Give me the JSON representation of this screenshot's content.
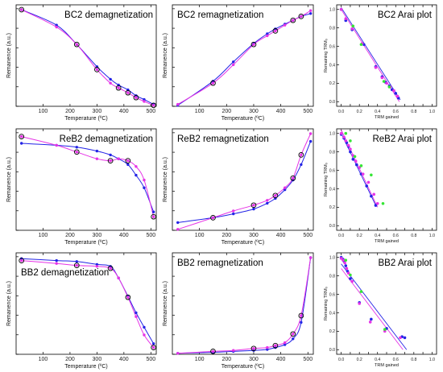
{
  "colors": {
    "blue": "#2323e6",
    "magenta": "#e633e6",
    "green": "#36e636",
    "frame": "#000000"
  },
  "chart_data": [
    {
      "type": "scatter",
      "panel": "demag",
      "row": 0,
      "col": 0,
      "title": "BC2 demagnetization",
      "xlabel": "Temperature (ºC)",
      "ylabel": "Remanence (a.u.)",
      "xlim": [
        0,
        520
      ],
      "ylim": [
        0,
        1.05
      ],
      "xticks": [
        100,
        200,
        300,
        400,
        500
      ],
      "yticks": [],
      "series": [
        {
          "color": "blue",
          "x": [
            20,
            150,
            225,
            300,
            350,
            380,
            415,
            445,
            475,
            510
          ],
          "y": [
            1.0,
            0.84,
            0.64,
            0.41,
            0.28,
            0.22,
            0.17,
            0.11,
            0.07,
            0.02
          ]
        },
        {
          "color": "magenta",
          "x": [
            20,
            150,
            225,
            300,
            350,
            380,
            415,
            445,
            475,
            510
          ],
          "y": [
            1.0,
            0.82,
            0.64,
            0.38,
            0.24,
            0.19,
            0.14,
            0.09,
            0.05,
            0.01
          ]
        }
      ],
      "circled": [
        0,
        2,
        3,
        5,
        6,
        7,
        9
      ]
    },
    {
      "type": "scatter",
      "panel": "remag",
      "row": 0,
      "col": 1,
      "title": "BC2 remagnetization",
      "xlabel": "Temperature (ºC)",
      "ylabel": "Remanence (a.u.)",
      "xlim": [
        0,
        520
      ],
      "ylim": [
        0,
        1.05
      ],
      "xticks": [
        100,
        200,
        300,
        400,
        500
      ],
      "yticks": [],
      "series": [
        {
          "color": "blue",
          "x": [
            20,
            150,
            225,
            300,
            350,
            380,
            415,
            445,
            475,
            510
          ],
          "y": [
            0.01,
            0.26,
            0.46,
            0.65,
            0.75,
            0.8,
            0.85,
            0.89,
            0.93,
            0.96
          ]
        },
        {
          "color": "magenta",
          "x": [
            20,
            150,
            225,
            300,
            350,
            380,
            415,
            445,
            475,
            510
          ],
          "y": [
            0.02,
            0.24,
            0.43,
            0.64,
            0.73,
            0.78,
            0.84,
            0.89,
            0.93,
            0.99
          ]
        }
      ],
      "circled": [
        1,
        3,
        5,
        7,
        8
      ]
    },
    {
      "type": "scatter",
      "panel": "arai",
      "row": 0,
      "col": 2,
      "title": "BC2 Arai plot",
      "xlabel": "TRM gained",
      "ylabel": "Remaining TRM₀",
      "xlim": [
        -0.05,
        1.05
      ],
      "ylim": [
        -0.05,
        1.05
      ],
      "xticks": [
        0.0,
        0.1,
        0.2,
        0.3,
        0.4,
        0.5,
        0.6,
        0.7,
        0.8,
        0.9,
        1.0
      ],
      "yticks": [
        0.0,
        0.2,
        0.4,
        0.6,
        0.8,
        1.0
      ],
      "xticklabels": [
        "0.0",
        "",
        "0.2",
        "",
        "0.4",
        "",
        "0.6",
        "",
        "0.8",
        "",
        "1.0"
      ],
      "yticklabels": [
        "0.0",
        "0.2",
        "0.4",
        "0.6",
        "0.8",
        "1.0"
      ],
      "fits": [
        {
          "color": "blue",
          "x": [
            0.0,
            0.65
          ],
          "y": [
            1.02,
            0.02
          ]
        },
        {
          "color": "magenta",
          "x": [
            0.0,
            0.64
          ],
          "y": [
            1.0,
            0.0
          ]
        }
      ],
      "series": [
        {
          "color": "blue",
          "x": [
            0.0,
            0.05,
            0.12,
            0.25,
            0.38,
            0.45,
            0.49,
            0.53,
            0.56,
            0.6,
            0.63
          ],
          "y": [
            1.0,
            0.88,
            0.78,
            0.62,
            0.38,
            0.27,
            0.21,
            0.17,
            0.13,
            0.09,
            0.04
          ]
        },
        {
          "color": "magenta",
          "x": [
            0.0,
            0.05,
            0.12,
            0.23,
            0.38,
            0.45,
            0.5,
            0.54,
            0.58,
            0.62
          ],
          "y": [
            1.0,
            0.9,
            0.79,
            0.63,
            0.37,
            0.26,
            0.2,
            0.16,
            0.12,
            0.06
          ]
        },
        {
          "color": "green",
          "x": [
            0.13,
            0.22,
            0.47,
            0.53
          ],
          "y": [
            0.82,
            0.62,
            0.22,
            0.16
          ]
        }
      ]
    },
    {
      "type": "scatter",
      "panel": "demag",
      "row": 1,
      "col": 0,
      "title": "ReB2 demagnetization",
      "xlabel": "Temperature (ºC)",
      "ylabel": "Remanence (a.u.)",
      "xlim": [
        0,
        520
      ],
      "ylim": [
        0,
        1.05
      ],
      "xticks": [
        100,
        200,
        300,
        400,
        500
      ],
      "yticks": [],
      "series": [
        {
          "color": "blue",
          "x": [
            20,
            150,
            225,
            300,
            350,
            380,
            415,
            445,
            475,
            510
          ],
          "y": [
            0.9,
            0.88,
            0.86,
            0.82,
            0.78,
            0.74,
            0.68,
            0.57,
            0.44,
            0.19
          ]
        },
        {
          "color": "magenta",
          "x": [
            20,
            150,
            225,
            300,
            350,
            380,
            415,
            445,
            475,
            510
          ],
          "y": [
            0.97,
            0.88,
            0.81,
            0.74,
            0.72,
            0.74,
            0.72,
            0.66,
            0.52,
            0.14
          ]
        }
      ],
      "circled": [
        0,
        2,
        4,
        6,
        9
      ]
    },
    {
      "type": "scatter",
      "panel": "remag",
      "row": 1,
      "col": 1,
      "title": "ReB2 remagnetization",
      "xlabel": "Temperature (ºC)",
      "ylabel": "Remanence (a.u.)",
      "xlim": [
        0,
        520
      ],
      "ylim": [
        0,
        1.05
      ],
      "xticks": [
        100,
        200,
        300,
        400,
        500
      ],
      "yticks": [],
      "series": [
        {
          "color": "blue",
          "x": [
            20,
            150,
            225,
            300,
            350,
            380,
            415,
            445,
            475,
            510
          ],
          "y": [
            0.08,
            0.13,
            0.17,
            0.22,
            0.28,
            0.33,
            0.42,
            0.52,
            0.68,
            0.92
          ]
        },
        {
          "color": "magenta",
          "x": [
            20,
            150,
            225,
            300,
            350,
            380,
            415,
            445,
            475,
            510
          ],
          "y": [
            0.01,
            0.13,
            0.2,
            0.26,
            0.31,
            0.36,
            0.44,
            0.54,
            0.78,
            1.0
          ]
        }
      ],
      "circled": [
        1,
        3,
        5,
        7,
        8
      ]
    },
    {
      "type": "scatter",
      "panel": "arai",
      "row": 1,
      "col": 2,
      "title": "ReB2 Arai plot",
      "xlabel": "TRM gained",
      "ylabel": "Remaining TRM₀",
      "xlim": [
        -0.05,
        1.05
      ],
      "ylim": [
        -0.05,
        1.05
      ],
      "xticks": [
        0.0,
        0.1,
        0.2,
        0.3,
        0.4,
        0.5,
        0.6,
        0.7,
        0.8,
        0.9,
        1.0
      ],
      "yticks": [
        0.0,
        0.2,
        0.4,
        0.6,
        0.8,
        1.0
      ],
      "xticklabels": [
        "0.0",
        "",
        "0.2",
        "",
        "0.4",
        "",
        "0.6",
        "",
        "0.8",
        "",
        "1.0"
      ],
      "yticklabels": [
        "0.0",
        "0.2",
        "0.4",
        "0.6",
        "0.8",
        "1.0"
      ],
      "fits": [
        {
          "color": "blue",
          "x": [
            0.0,
            0.38
          ],
          "y": [
            1.0,
            0.22
          ]
        },
        {
          "color": "magenta",
          "x": [
            0.0,
            0.4
          ],
          "y": [
            1.04,
            0.2
          ]
        }
      ],
      "series": [
        {
          "color": "blue",
          "x": [
            0.0,
            0.03,
            0.06,
            0.08,
            0.1,
            0.13,
            0.17,
            0.22,
            0.28,
            0.33,
            0.38
          ],
          "y": [
            0.99,
            0.95,
            0.9,
            0.86,
            0.8,
            0.72,
            0.66,
            0.56,
            0.43,
            0.32,
            0.22
          ]
        },
        {
          "color": "magenta",
          "x": [
            0.0,
            0.03,
            0.05,
            0.08,
            0.1,
            0.13,
            0.16,
            0.2,
            0.24,
            0.3,
            0.36,
            0.4
          ],
          "y": [
            1.0,
            0.96,
            0.92,
            0.87,
            0.83,
            0.76,
            0.7,
            0.63,
            0.56,
            0.47,
            0.34,
            0.24
          ]
        },
        {
          "color": "green",
          "x": [
            0.05,
            0.1,
            0.15,
            0.22,
            0.33,
            0.46
          ],
          "y": [
            1.0,
            0.92,
            0.75,
            0.65,
            0.55,
            0.24
          ]
        }
      ]
    },
    {
      "type": "scatter",
      "panel": "demag",
      "row": 2,
      "col": 0,
      "title": "BB2 demagnetization",
      "xlabel": "Temperature (ºC)",
      "ylabel": "Remanence (a.u.)",
      "xlim": [
        0,
        520
      ],
      "ylim": [
        0,
        1.05
      ],
      "xticks": [
        100,
        200,
        300,
        400,
        500
      ],
      "yticks": [],
      "series": [
        {
          "color": "blue",
          "x": [
            20,
            150,
            225,
            300,
            350,
            380,
            415,
            445,
            475,
            510
          ],
          "y": [
            0.99,
            0.97,
            0.96,
            0.93,
            0.91,
            0.79,
            0.6,
            0.43,
            0.28,
            0.11
          ]
        },
        {
          "color": "magenta",
          "x": [
            20,
            150,
            225,
            300,
            350,
            380,
            415,
            445,
            475,
            510
          ],
          "y": [
            0.97,
            0.94,
            0.92,
            0.91,
            0.89,
            0.79,
            0.59,
            0.39,
            0.2,
            0.07
          ]
        }
      ],
      "circled": [
        0,
        2,
        4,
        6,
        9
      ]
    },
    {
      "type": "scatter",
      "panel": "remag",
      "row": 2,
      "col": 1,
      "title": "BB2 remagnetization",
      "xlabel": "Temperature (ºC)",
      "ylabel": "Remanence (a.u.)",
      "xlim": [
        0,
        520
      ],
      "ylim": [
        0,
        1.05
      ],
      "xticks": [
        100,
        200,
        300,
        400,
        500
      ],
      "yticks": [],
      "series": [
        {
          "color": "blue",
          "x": [
            20,
            150,
            225,
            300,
            350,
            380,
            415,
            445,
            475,
            510
          ],
          "y": [
            0.01,
            0.02,
            0.03,
            0.04,
            0.05,
            0.07,
            0.1,
            0.16,
            0.33,
            1.0
          ]
        },
        {
          "color": "magenta",
          "x": [
            20,
            150,
            225,
            300,
            350,
            380,
            415,
            445,
            475,
            510
          ],
          "y": [
            0.01,
            0.03,
            0.04,
            0.06,
            0.07,
            0.09,
            0.12,
            0.21,
            0.4,
            1.0
          ]
        }
      ],
      "circled": [
        1,
        3,
        5,
        7,
        8
      ]
    },
    {
      "type": "scatter",
      "panel": "arai",
      "row": 2,
      "col": 2,
      "title": "BB2 Arai plot",
      "xlabel": "TRM gained",
      "ylabel": "Remaining TRM₀",
      "xlim": [
        -0.05,
        1.05
      ],
      "ylim": [
        -0.05,
        1.05
      ],
      "xticks": [
        0.0,
        0.1,
        0.2,
        0.3,
        0.4,
        0.5,
        0.6,
        0.7,
        0.8,
        0.9,
        1.0
      ],
      "yticks": [
        0.0,
        0.2,
        0.4,
        0.6,
        0.8,
        1.0
      ],
      "xticklabels": [
        "0.0",
        "",
        "0.2",
        "",
        "0.4",
        "",
        "0.6",
        "",
        "0.8",
        "",
        "1.0"
      ],
      "yticklabels": [
        "0.0",
        "0.2",
        "0.4",
        "0.6",
        "0.8",
        "1.0"
      ],
      "fits": [
        {
          "color": "blue",
          "x": [
            0.0,
            0.72
          ],
          "y": [
            0.93,
            0.0
          ]
        },
        {
          "color": "magenta",
          "x": [
            0.0,
            0.68
          ],
          "y": [
            0.88,
            0.0
          ]
        }
      ],
      "series": [
        {
          "color": "blue",
          "x": [
            0.0,
            0.02,
            0.03,
            0.05,
            0.07,
            0.1,
            0.2,
            0.33,
            0.5,
            0.67,
            0.7
          ],
          "y": [
            1.0,
            0.98,
            0.96,
            0.91,
            0.85,
            0.77,
            0.51,
            0.33,
            0.23,
            0.14,
            0.13
          ]
        },
        {
          "color": "magenta",
          "x": [
            0.0,
            0.02,
            0.04,
            0.06,
            0.08,
            0.12,
            0.2,
            0.32,
            0.48,
            0.65
          ],
          "y": [
            0.99,
            0.97,
            0.94,
            0.88,
            0.83,
            0.74,
            0.5,
            0.3,
            0.2,
            0.13
          ]
        },
        {
          "color": "green",
          "x": [
            0.05,
            0.1,
            0.22,
            0.48
          ],
          "y": [
            0.97,
            0.81,
            0.63,
            0.22
          ]
        }
      ]
    }
  ]
}
